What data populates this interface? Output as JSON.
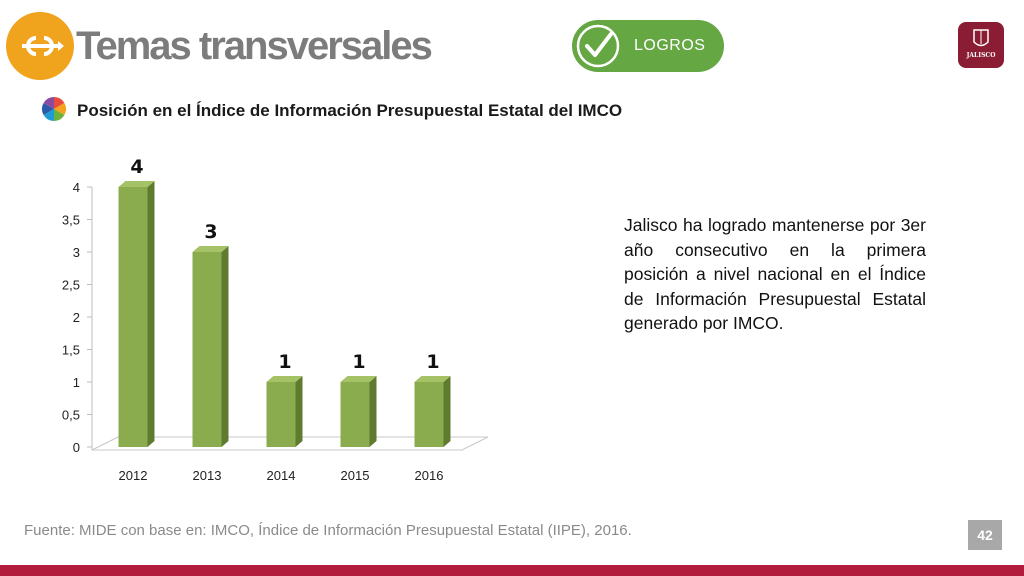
{
  "header": {
    "title": "Temas transversales",
    "badge_label": "LOGROS",
    "seal_label": "JALISCO",
    "logo_icon": "link-arrows-icon",
    "badge_icon": "checkmark-icon"
  },
  "subtitle": "Posición en el Índice de Información Presupuestal Estatal del IMCO",
  "body_text": "Jalisco ha logrado mantenerse por 3er año consecutivo en la primera posición a nivel nacional en el Índice de Información Presupuestal Estatal generado por IMCO.",
  "source": "Fuente: MIDE con base en: IMCO, Índice de Información Presupuestal Estatal (IIPE), 2016.",
  "page_number": "42",
  "colors": {
    "bar_front": "#8aab4e",
    "bar_side": "#5f7b2f",
    "bar_top": "#a5c266",
    "logo": "#f0a41d",
    "badge": "#65a843",
    "footer": "#b31b3c",
    "seal": "#8a1c34"
  },
  "chart_data": {
    "type": "bar",
    "categories": [
      "2012",
      "2013",
      "2014",
      "2015",
      "2016"
    ],
    "values": [
      4,
      3,
      1,
      1,
      1
    ],
    "data_labels": [
      "4",
      "3",
      "1",
      "1",
      "1"
    ],
    "y_ticks": [
      "0",
      "0,5",
      "1",
      "1,5",
      "2",
      "2,5",
      "3",
      "3,5",
      "4"
    ],
    "ylim": [
      0,
      4
    ],
    "title": "",
    "xlabel": "",
    "ylabel": "",
    "grid": false,
    "legend": "none",
    "style": "3d-column"
  }
}
